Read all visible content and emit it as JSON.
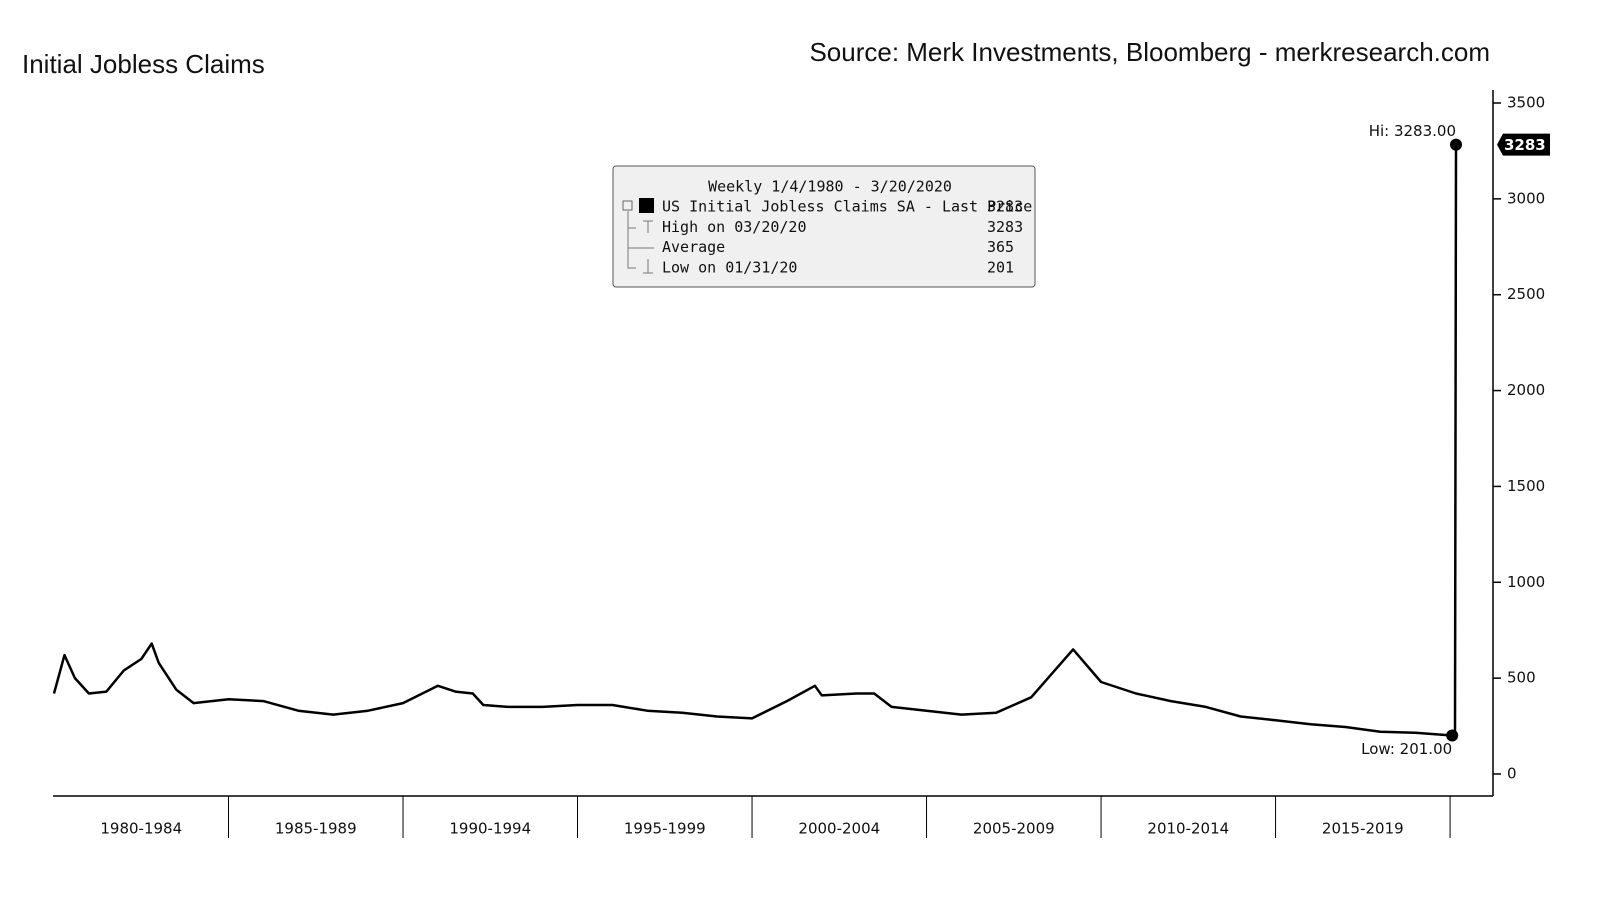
{
  "chart_data": {
    "type": "line",
    "title": "Initial Jobless Claims",
    "subtitle": "Source: Merk Investments, Bloomberg - merkresearch.com",
    "x": [
      1980.0,
      1980.3,
      1980.6,
      1981.0,
      1981.5,
      1982.0,
      1982.5,
      1982.8,
      1983.0,
      1983.5,
      1984.0,
      1985.0,
      1986.0,
      1987.0,
      1988.0,
      1989.0,
      1990.0,
      1991.0,
      1991.5,
      1992.0,
      1992.3,
      1993.0,
      1994.0,
      1995.0,
      1996.0,
      1997.0,
      1998.0,
      1999.0,
      2000.0,
      2001.0,
      2001.8,
      2002.0,
      2003.0,
      2003.5,
      2004.0,
      2005.0,
      2006.0,
      2007.0,
      2008.0,
      2009.2,
      2010.0,
      2011.0,
      2012.0,
      2013.0,
      2014.0,
      2015.0,
      2016.0,
      2017.0,
      2018.0,
      2019.0,
      2020.06,
      2020.14,
      2020.17
    ],
    "series": [
      {
        "name": "US Initial Jobless Claims SA - Last Price",
        "color": "#000000",
        "values": [
          420,
          620,
          500,
          420,
          430,
          540,
          600,
          680,
          580,
          440,
          370,
          390,
          380,
          330,
          310,
          330,
          370,
          460,
          430,
          420,
          360,
          350,
          350,
          360,
          360,
          330,
          320,
          300,
          290,
          380,
          460,
          410,
          420,
          420,
          350,
          330,
          310,
          320,
          400,
          650,
          480,
          420,
          380,
          350,
          300,
          280,
          260,
          245,
          220,
          215,
          201,
          211,
          3283
        ]
      }
    ],
    "xlim": [
      1980,
      2021.23
    ],
    "xticks": [
      {
        "value": 1982.5,
        "label": "1980-1984"
      },
      {
        "value": 1987.5,
        "label": "1985-1989"
      },
      {
        "value": 1992.5,
        "label": "1990-1994"
      },
      {
        "value": 1997.5,
        "label": "1995-1999"
      },
      {
        "value": 2002.5,
        "label": "2000-2004"
      },
      {
        "value": 2007.5,
        "label": "2005-2009"
      },
      {
        "value": 2012.5,
        "label": "2010-2014"
      },
      {
        "value": 2017.5,
        "label": "2015-2019"
      }
    ],
    "ylim": [
      0,
      3500
    ],
    "yticks": [
      0,
      500,
      1000,
      1500,
      2000,
      2500,
      3000,
      3500
    ],
    "annotations": [
      {
        "text": "Hi: 3283.00",
        "index": 52
      },
      {
        "text": "Low: 201.00",
        "index": 50
      }
    ],
    "last_price_label": "3283",
    "legend": {
      "title": "Weekly 1/4/1980 - 3/20/2020",
      "rows": [
        {
          "label": "US Initial Jobless Claims SA - Last Price",
          "value": "3283"
        },
        {
          "label": "High on 03/20/20",
          "value": "3283"
        },
        {
          "label": "Average",
          "value": "365"
        },
        {
          "label": "Low on 01/31/20",
          "value": "201"
        }
      ]
    }
  }
}
